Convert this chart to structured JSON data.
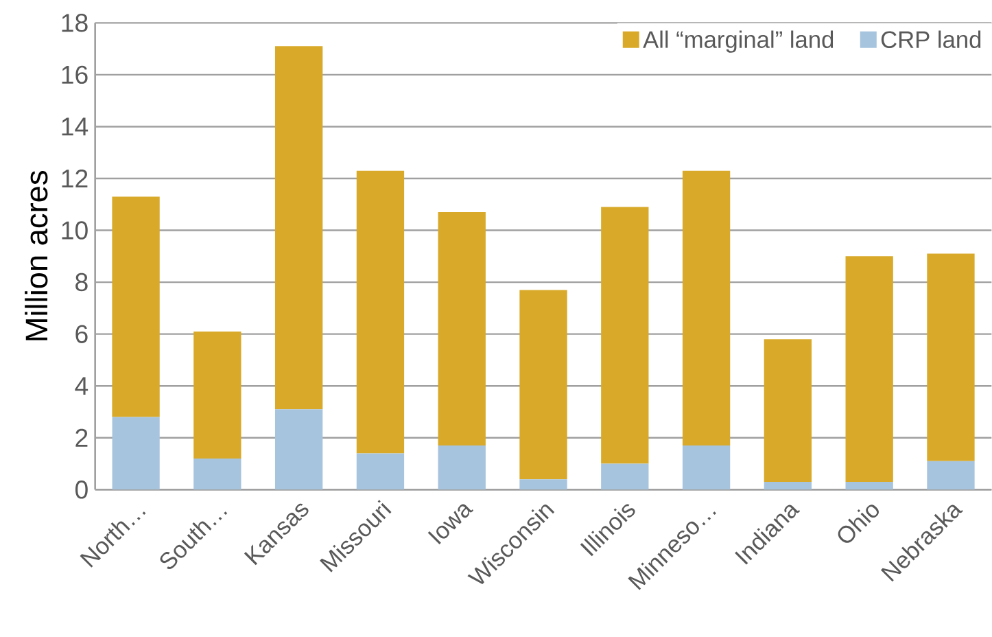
{
  "chart_data": {
    "type": "bar",
    "stacked": true,
    "ylabel": "Million acres",
    "categories": [
      "North…",
      "South…",
      "Kansas",
      "Missouri",
      "Iowa",
      "Wisconsin",
      "Illinois",
      "Minneso…",
      "Indiana",
      "Ohio",
      "Nebraska"
    ],
    "series": [
      {
        "name": "CRP land",
        "color": "#a7c4de",
        "values": [
          2.8,
          1.2,
          3.1,
          1.4,
          1.7,
          0.4,
          1.0,
          1.7,
          0.3,
          0.3,
          1.1
        ]
      },
      {
        "name": "All “marginal”  land",
        "color": "#d9aa29",
        "values": [
          8.5,
          4.9,
          14.0,
          10.9,
          9.0,
          7.3,
          9.9,
          10.6,
          5.5,
          8.7,
          8.0
        ]
      }
    ],
    "ylim": [
      0,
      18
    ],
    "yticks": [
      0,
      2,
      4,
      6,
      8,
      10,
      12,
      14,
      16,
      18
    ],
    "grid": "y",
    "legend": "top right"
  }
}
